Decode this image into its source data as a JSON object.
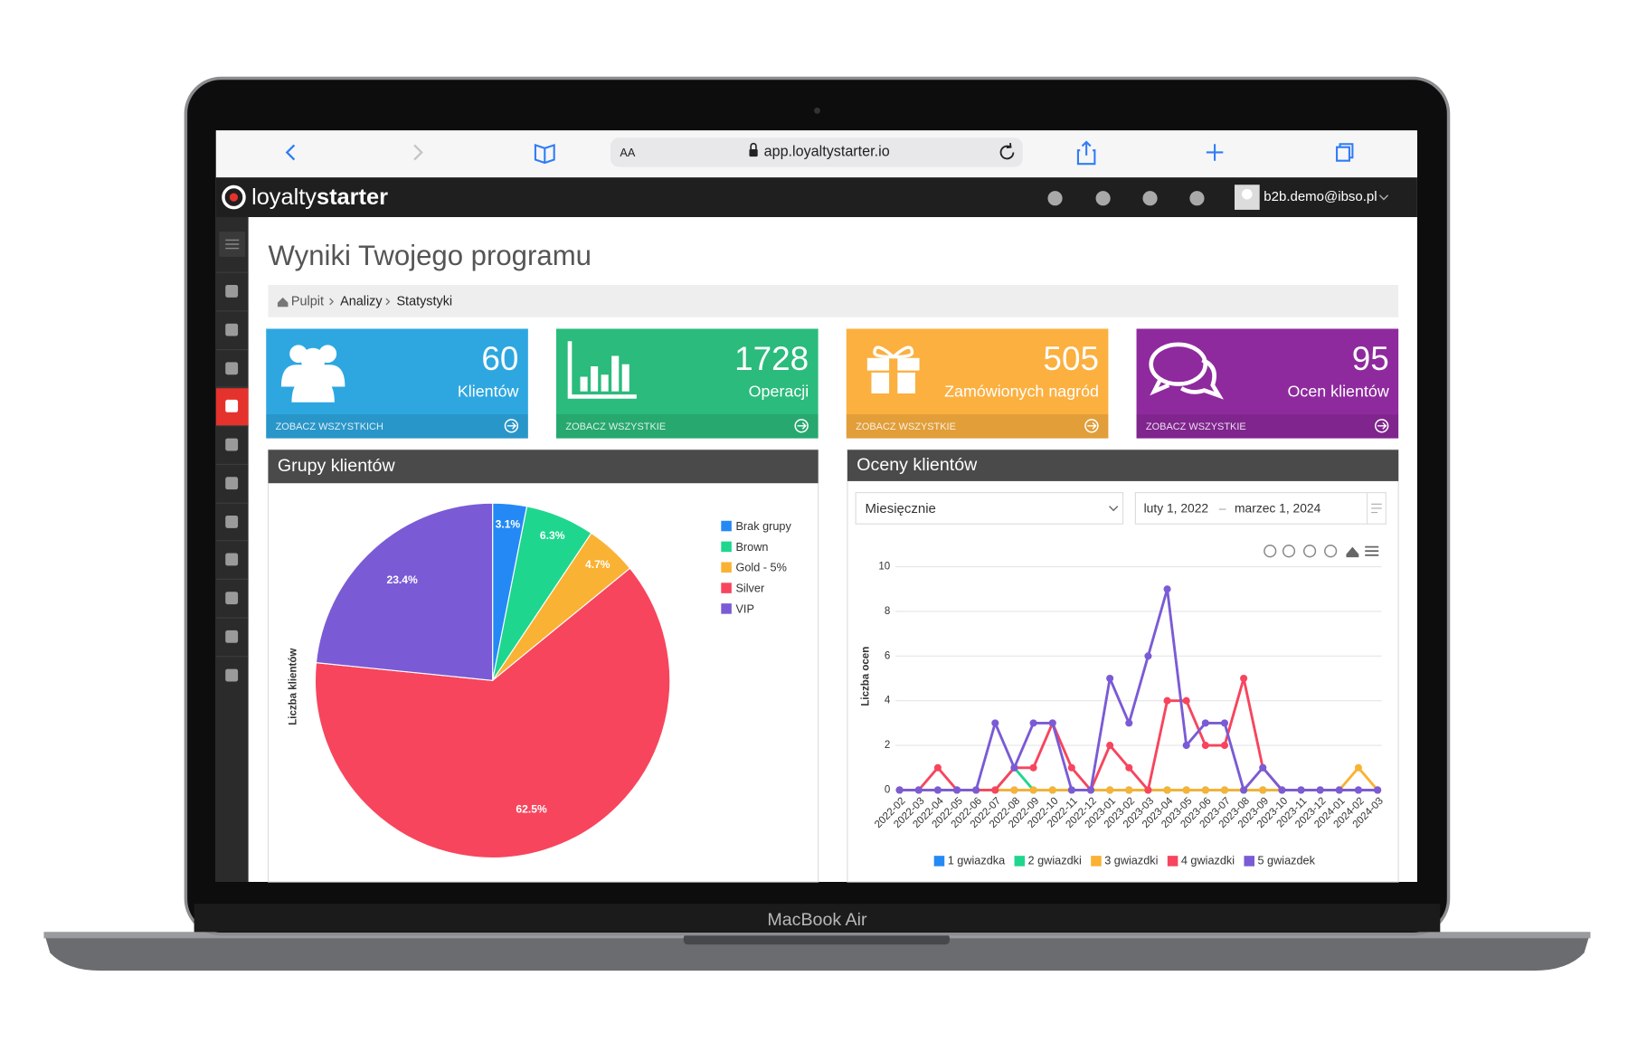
{
  "browser": {
    "text_size": "AA",
    "url": "app.loyaltystarter.io"
  },
  "app": {
    "logo": [
      "loyalty",
      "starter"
    ],
    "user": "b2b.demo@ibso.pl"
  },
  "page": {
    "title": "Wyniki Twojego programu",
    "breadcrumb": [
      "Pulpit",
      "Analizy",
      "Statystyki"
    ]
  },
  "cards": [
    {
      "value": 60,
      "label": "Klientów",
      "link": "ZOBACZ WSZYSTKICH",
      "color": "#2ea7e0"
    },
    {
      "value": 1728,
      "label": "Operacji",
      "link": "ZOBACZ WSZYSTKIE",
      "color": "#2bbb7c"
    },
    {
      "value": 505,
      "label": "Zamówionych nagród",
      "link": "ZOBACZ WSZYSTKIE",
      "color": "#fbb040"
    },
    {
      "value": 95,
      "label": "Ocen klientów",
      "link": "ZOBACZ WSZYSTKIE",
      "color": "#8e2a9e"
    }
  ],
  "panels": [
    {
      "title": "Grupy klientów"
    },
    {
      "title": "Oceny klientów",
      "period": "Miesięcznie",
      "date_from": "luty 1, 2022",
      "date_separator": "–",
      "date_to": "marzec 1, 2024"
    }
  ],
  "chart_data": [
    {
      "type": "pie",
      "categories": [
        "Brak grupy",
        "Brown",
        "Gold - 5%",
        "Silver",
        "VIP"
      ],
      "values": [
        3.1,
        6.3,
        4.7,
        62.5,
        23.4
      ],
      "value_labels": [
        "3.1%",
        "6.3%",
        "4.7%",
        "62.5%",
        "23.4%"
      ],
      "colors": [
        "#2589f5",
        "#1fd68f",
        "#f9b233",
        "#f7455d",
        "#7a5bd5"
      ],
      "ylabel": "Liczba klientów",
      "legend": "right"
    },
    {
      "type": "line",
      "categories": [
        "2022-02",
        "2022-03",
        "2022-04",
        "2022-05",
        "2022-06",
        "2022-07",
        "2022-08",
        "2022-09",
        "2022-10",
        "2022-11",
        "2022-12",
        "2023-01",
        "2023-02",
        "2023-03",
        "2023-04",
        "2023-05",
        "2023-06",
        "2023-07",
        "2023-08",
        "2023-09",
        "2023-10",
        "2023-11",
        "2023-12",
        "2024-01",
        "2024-02",
        "2024-03"
      ],
      "series": [
        {
          "name": "1 gwiazdka",
          "color": "#2589f5",
          "values": [
            0,
            0,
            0,
            0,
            0,
            0,
            0,
            0,
            0,
            0,
            0,
            0,
            0,
            0,
            0,
            0,
            0,
            0,
            0,
            0,
            0,
            0,
            0,
            0,
            0,
            0
          ]
        },
        {
          "name": "2 gwiazdki",
          "color": "#1fd68f",
          "values": [
            0,
            0,
            0,
            0,
            0,
            0,
            1,
            0,
            0,
            0,
            0,
            0,
            0,
            0,
            0,
            0,
            0,
            0,
            0,
            0,
            0,
            0,
            0,
            0,
            0,
            0
          ]
        },
        {
          "name": "3 gwiazdki",
          "color": "#f9b233",
          "values": [
            0,
            0,
            0,
            0,
            0,
            0,
            0,
            0,
            0,
            0,
            0,
            0,
            0,
            0,
            0,
            0,
            0,
            0,
            0,
            0,
            0,
            0,
            0,
            0,
            1,
            0
          ]
        },
        {
          "name": "4 gwiazdki",
          "color": "#f7455d",
          "values": [
            0,
            0,
            1,
            0,
            0,
            0,
            1,
            1,
            3,
            1,
            0,
            2,
            1,
            0,
            4,
            4,
            2,
            2,
            5,
            1,
            0,
            0,
            0,
            0,
            0,
            0
          ]
        },
        {
          "name": "5 gwiazdek",
          "color": "#7a5bd5",
          "values": [
            0,
            0,
            0,
            0,
            0,
            3,
            1,
            3,
            3,
            0,
            0,
            5,
            3,
            6,
            9,
            2,
            3,
            3,
            0,
            1,
            0,
            0,
            0,
            0,
            0,
            0
          ]
        }
      ],
      "ylim": [
        0,
        10
      ],
      "yticks": [
        0,
        2,
        4,
        6,
        8,
        10
      ],
      "grid": true,
      "ylabel": "Liczba ocen",
      "legend": "bottom"
    }
  ],
  "device": {
    "label": "MacBook Air"
  }
}
